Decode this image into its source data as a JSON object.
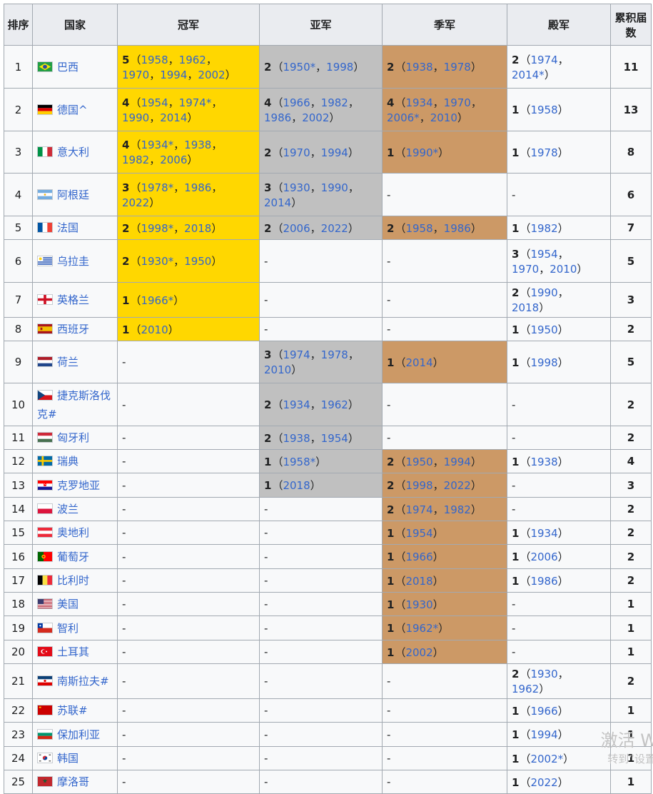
{
  "headers": [
    "排序",
    "国家",
    "冠军",
    "亚军",
    "季军",
    "殿军",
    "累积届数"
  ],
  "rows": [
    {
      "rank": "1",
      "country": "巴西",
      "flag": "br",
      "gold": {
        "n": "5",
        "years": [
          "1958",
          "1962",
          "1970",
          "1994",
          "2002"
        ]
      },
      "silver": {
        "n": "2",
        "years": [
          "1950*",
          "1998"
        ]
      },
      "bronze": {
        "n": "2",
        "years": [
          "1938",
          "1978"
        ]
      },
      "fourth": {
        "n": "2",
        "years": [
          "1974",
          "2014*"
        ]
      },
      "total": "11"
    },
    {
      "rank": "2",
      "country": "德国^",
      "flag": "de",
      "gold": {
        "n": "4",
        "years": [
          "1954",
          "1974*",
          "1990",
          "2014"
        ]
      },
      "silver": {
        "n": "4",
        "years": [
          "1966",
          "1982",
          "1986",
          "2002"
        ]
      },
      "bronze": {
        "n": "4",
        "years": [
          "1934",
          "1970",
          "2006*",
          "2010"
        ]
      },
      "fourth": {
        "n": "1",
        "years": [
          "1958"
        ]
      },
      "total": "13"
    },
    {
      "rank": "3",
      "country": "意大利",
      "flag": "it",
      "gold": {
        "n": "4",
        "years": [
          "1934*",
          "1938",
          "1982",
          "2006"
        ]
      },
      "silver": {
        "n": "2",
        "years": [
          "1970",
          "1994"
        ]
      },
      "bronze": {
        "n": "1",
        "years": [
          "1990*"
        ]
      },
      "fourth": {
        "n": "1",
        "years": [
          "1978"
        ]
      },
      "total": "8"
    },
    {
      "rank": "4",
      "country": "阿根廷",
      "flag": "ar",
      "gold": {
        "n": "3",
        "years": [
          "1978*",
          "1986",
          "2022"
        ]
      },
      "silver": {
        "n": "3",
        "years": [
          "1930",
          "1990",
          "2014"
        ]
      },
      "bronze": null,
      "fourth": null,
      "total": "6"
    },
    {
      "rank": "5",
      "country": "法国",
      "flag": "fr",
      "gold": {
        "n": "2",
        "years": [
          "1998*",
          "2018"
        ]
      },
      "silver": {
        "n": "2",
        "years": [
          "2006",
          "2022"
        ]
      },
      "bronze": {
        "n": "2",
        "years": [
          "1958",
          "1986"
        ]
      },
      "fourth": {
        "n": "1",
        "years": [
          "1982"
        ]
      },
      "total": "7"
    },
    {
      "rank": "6",
      "country": "乌拉圭",
      "flag": "uy",
      "gold": {
        "n": "2",
        "years": [
          "1930*",
          "1950"
        ]
      },
      "silver": null,
      "bronze": null,
      "fourth": {
        "n": "3",
        "years": [
          "1954",
          "1970",
          "2010"
        ]
      },
      "total": "5"
    },
    {
      "rank": "7",
      "country": "英格兰",
      "flag": "en",
      "gold": {
        "n": "1",
        "years": [
          "1966*"
        ]
      },
      "silver": null,
      "bronze": null,
      "fourth": {
        "n": "2",
        "years": [
          "1990",
          "2018"
        ]
      },
      "total": "3"
    },
    {
      "rank": "8",
      "country": "西班牙",
      "flag": "es",
      "gold": {
        "n": "1",
        "years": [
          "2010"
        ]
      },
      "silver": null,
      "bronze": null,
      "fourth": {
        "n": "1",
        "years": [
          "1950"
        ]
      },
      "total": "2"
    },
    {
      "rank": "9",
      "country": "荷兰",
      "flag": "nl",
      "gold": null,
      "silver": {
        "n": "3",
        "years": [
          "1974",
          "1978",
          "2010"
        ]
      },
      "bronze": {
        "n": "1",
        "years": [
          "2014"
        ]
      },
      "fourth": {
        "n": "1",
        "years": [
          "1998"
        ]
      },
      "total": "5"
    },
    {
      "rank": "10",
      "country": "捷克斯洛伐克#",
      "flag": "cz",
      "gold": null,
      "silver": {
        "n": "2",
        "years": [
          "1934",
          "1962"
        ]
      },
      "bronze": null,
      "fourth": null,
      "total": "2"
    },
    {
      "rank": "11",
      "country": "匈牙利",
      "flag": "hu",
      "gold": null,
      "silver": {
        "n": "2",
        "years": [
          "1938",
          "1954"
        ]
      },
      "bronze": null,
      "fourth": null,
      "total": "2"
    },
    {
      "rank": "12",
      "country": "瑞典",
      "flag": "se",
      "gold": null,
      "silver": {
        "n": "1",
        "years": [
          "1958*"
        ]
      },
      "bronze": {
        "n": "2",
        "years": [
          "1950",
          "1994"
        ]
      },
      "fourth": {
        "n": "1",
        "years": [
          "1938"
        ]
      },
      "total": "4"
    },
    {
      "rank": "13",
      "country": "克罗地亚",
      "flag": "hr",
      "gold": null,
      "silver": {
        "n": "1",
        "years": [
          "2018"
        ]
      },
      "bronze": {
        "n": "2",
        "years": [
          "1998",
          "2022"
        ]
      },
      "fourth": null,
      "total": "3"
    },
    {
      "rank": "14",
      "country": "波兰",
      "flag": "pl",
      "gold": null,
      "silver": null,
      "bronze": {
        "n": "2",
        "years": [
          "1974",
          "1982"
        ]
      },
      "fourth": null,
      "total": "2"
    },
    {
      "rank": "15",
      "country": "奥地利",
      "flag": "at",
      "gold": null,
      "silver": null,
      "bronze": {
        "n": "1",
        "years": [
          "1954"
        ]
      },
      "fourth": {
        "n": "1",
        "years": [
          "1934"
        ]
      },
      "total": "2"
    },
    {
      "rank": "16",
      "country": "葡萄牙",
      "flag": "pt",
      "gold": null,
      "silver": null,
      "bronze": {
        "n": "1",
        "years": [
          "1966"
        ]
      },
      "fourth": {
        "n": "1",
        "years": [
          "2006"
        ]
      },
      "total": "2"
    },
    {
      "rank": "17",
      "country": "比利时",
      "flag": "be",
      "gold": null,
      "silver": null,
      "bronze": {
        "n": "1",
        "years": [
          "2018"
        ]
      },
      "fourth": {
        "n": "1",
        "years": [
          "1986"
        ]
      },
      "total": "2"
    },
    {
      "rank": "18",
      "country": "美国",
      "flag": "us",
      "gold": null,
      "silver": null,
      "bronze": {
        "n": "1",
        "years": [
          "1930"
        ]
      },
      "fourth": null,
      "total": "1"
    },
    {
      "rank": "19",
      "country": "智利",
      "flag": "cl",
      "gold": null,
      "silver": null,
      "bronze": {
        "n": "1",
        "years": [
          "1962*"
        ]
      },
      "fourth": null,
      "total": "1"
    },
    {
      "rank": "20",
      "country": "土耳其",
      "flag": "tr",
      "gold": null,
      "silver": null,
      "bronze": {
        "n": "1",
        "years": [
          "2002"
        ]
      },
      "fourth": null,
      "total": "1"
    },
    {
      "rank": "21",
      "country": "南斯拉夫#",
      "flag": "yu",
      "gold": null,
      "silver": null,
      "bronze": null,
      "fourth": {
        "n": "2",
        "years": [
          "1930",
          "1962"
        ]
      },
      "total": "2"
    },
    {
      "rank": "22",
      "country": "苏联#",
      "flag": "su",
      "gold": null,
      "silver": null,
      "bronze": null,
      "fourth": {
        "n": "1",
        "years": [
          "1966"
        ]
      },
      "total": "1"
    },
    {
      "rank": "23",
      "country": "保加利亚",
      "flag": "bg",
      "gold": null,
      "silver": null,
      "bronze": null,
      "fourth": {
        "n": "1",
        "years": [
          "1994"
        ]
      },
      "total": "1"
    },
    {
      "rank": "24",
      "country": "韩国",
      "flag": "kr",
      "gold": null,
      "silver": null,
      "bronze": null,
      "fourth": {
        "n": "1",
        "years": [
          "2002*"
        ]
      },
      "total": "1"
    },
    {
      "rank": "25",
      "country": "摩洛哥",
      "flag": "ma",
      "gold": null,
      "silver": null,
      "bronze": null,
      "fourth": {
        "n": "1",
        "years": [
          "2022"
        ]
      },
      "total": "1"
    }
  ],
  "empty_mark": "-",
  "cell_colors": {
    "gold": "#ffd700",
    "silver": "#c0c0c0",
    "bronze": "#cc9966",
    "link": "#3366cc"
  },
  "watermark": {
    "line1": "激活 W",
    "line2": "转到“设置"
  }
}
